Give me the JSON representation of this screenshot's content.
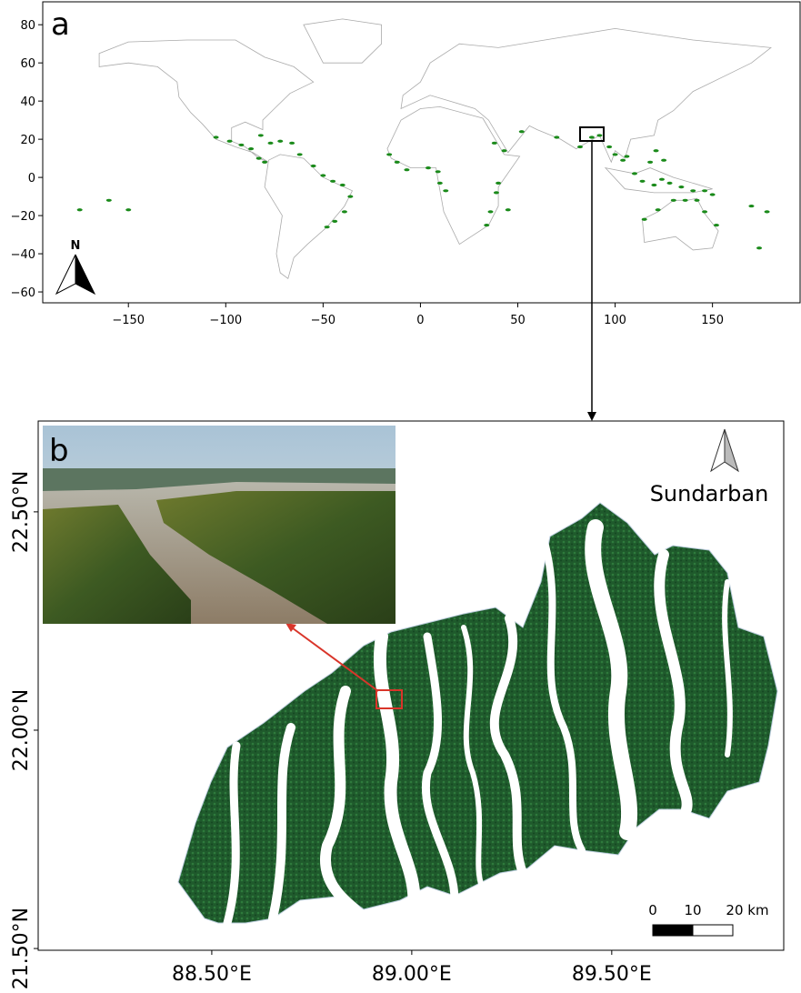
{
  "panel_a": {
    "label": "a",
    "north": "N",
    "xlim": [
      -194,
      195
    ],
    "ylim": [
      -65.7,
      92
    ],
    "xticks": [
      {
        "value": -150,
        "label": "−150"
      },
      {
        "value": -100,
        "label": "−100"
      },
      {
        "value": -50,
        "label": "−50"
      },
      0,
      50,
      100,
      150
    ],
    "yticks": [
      {
        "value": -60,
        "label": "−60"
      },
      {
        "value": -40,
        "label": "−40"
      },
      {
        "value": -20,
        "label": "−20"
      },
      0,
      20,
      40,
      60,
      80
    ]
  },
  "panel_b": {
    "label": "b",
    "site": "Sundarban",
    "xlim": [
      88.066,
      89.93
    ],
    "ylim": [
      21.496,
      22.708
    ],
    "xticks": [
      {
        "value": 88.5,
        "label": "88.50°E"
      },
      {
        "value": 89.0,
        "label": "89.00°E"
      },
      {
        "value": 89.5,
        "label": "89.50°E"
      }
    ],
    "yticks": [
      {
        "value": 21.5,
        "label": "21.50°N"
      },
      {
        "value": 22.0,
        "label": "22.00°N"
      },
      {
        "value": 22.5,
        "label": "22.50°N"
      }
    ],
    "scale_bar": [
      0,
      10,
      {
        "value": 20,
        "label": "20 km"
      }
    ]
  }
}
